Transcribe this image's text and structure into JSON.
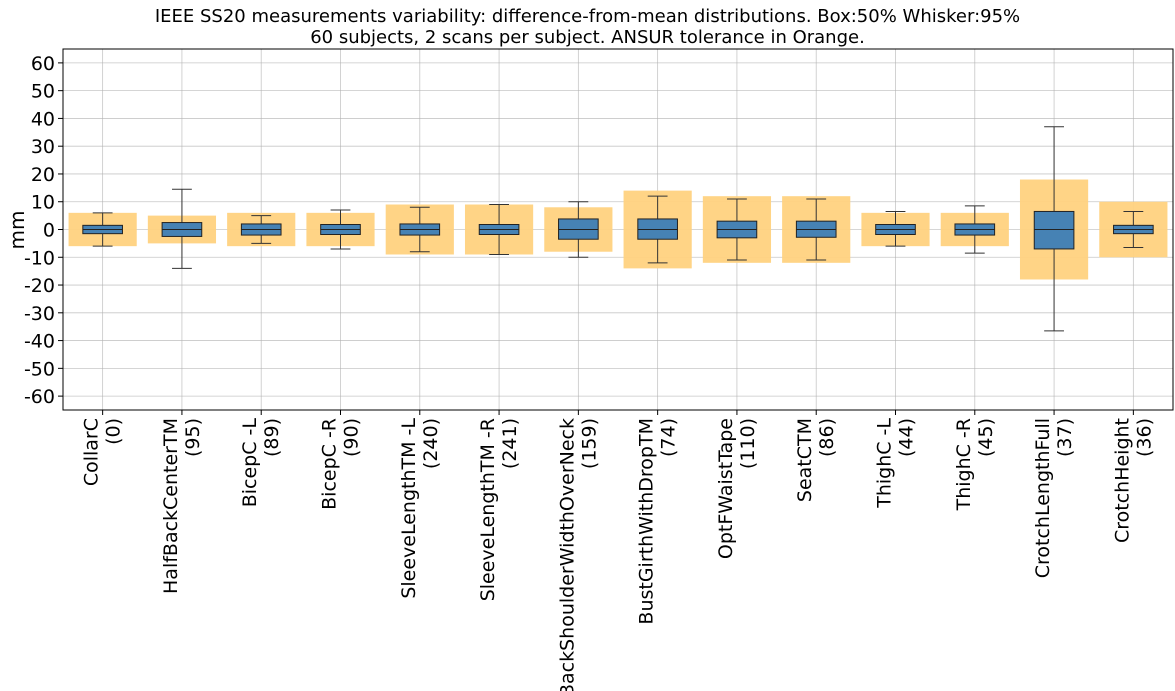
{
  "chart_data": {
    "type": "box",
    "title_lines": [
      "IEEE SS20 measurements variability: difference-from-mean distributions. Box:50% Whisker:95%",
      "60 subjects, 2 scans per subject. ANSUR tolerance in Orange."
    ],
    "ylabel": "mm",
    "xlabel": "",
    "ylim": [
      -65,
      65
    ],
    "yticks": [
      -60,
      -50,
      -40,
      -30,
      -20,
      -10,
      0,
      10,
      20,
      30,
      40,
      50,
      60
    ],
    "ytick_labels": [
      "-60",
      "-50",
      "-40",
      "-30",
      "-20",
      "-10",
      "0",
      "10",
      "20",
      "30",
      "40",
      "50",
      "60"
    ],
    "grid": true,
    "colors": {
      "box": "#4682b4",
      "tolerance": "#ffd27f",
      "grid": "#b0b0b0"
    },
    "categories": [
      {
        "name": "CollarC",
        "id": "(0)",
        "tolerance": 6,
        "q1": -1.5,
        "median": 0,
        "q3": 1.5,
        "whisker_low": -6,
        "whisker_high": 6
      },
      {
        "name": "HalfBackCenterTM",
        "id": "(95)",
        "tolerance": 5,
        "q1": -2.5,
        "median": 0,
        "q3": 2.5,
        "whisker_low": -14,
        "whisker_high": 14.5
      },
      {
        "name": "BicepC -L",
        "id": "(89)",
        "tolerance": 6,
        "q1": -2,
        "median": 0,
        "q3": 2,
        "whisker_low": -5,
        "whisker_high": 5
      },
      {
        "name": "BicepC -R",
        "id": "(90)",
        "tolerance": 6,
        "q1": -1.8,
        "median": 0,
        "q3": 1.8,
        "whisker_low": -7,
        "whisker_high": 7
      },
      {
        "name": "SleeveLengthTM -L",
        "id": "(240)",
        "tolerance": 9,
        "q1": -2,
        "median": 0,
        "q3": 2,
        "whisker_low": -8,
        "whisker_high": 8
      },
      {
        "name": "SleeveLengthTM -R",
        "id": "(241)",
        "tolerance": 9,
        "q1": -1.8,
        "median": 0,
        "q3": 1.8,
        "whisker_low": -9,
        "whisker_high": 9
      },
      {
        "name": "BackShoulderWidthOverNeck",
        "id": "(159)",
        "tolerance": 8,
        "q1": -3.5,
        "median": 0,
        "q3": 3.8,
        "whisker_low": -10,
        "whisker_high": 10
      },
      {
        "name": "BustGirthWithDropTM",
        "id": "(74)",
        "tolerance": 14,
        "q1": -3.5,
        "median": 0,
        "q3": 3.8,
        "whisker_low": -12,
        "whisker_high": 12
      },
      {
        "name": "OptFWaistTape",
        "id": "(110)",
        "tolerance": 12,
        "q1": -3,
        "median": 0,
        "q3": 3,
        "whisker_low": -11,
        "whisker_high": 11
      },
      {
        "name": "SeatCTM",
        "id": "(86)",
        "tolerance": 12,
        "q1": -2.8,
        "median": 0,
        "q3": 3,
        "whisker_low": -11,
        "whisker_high": 11
      },
      {
        "name": "ThighC -L",
        "id": "(44)",
        "tolerance": 6,
        "q1": -1.8,
        "median": 0,
        "q3": 1.8,
        "whisker_low": -6,
        "whisker_high": 6.5
      },
      {
        "name": "ThighC -R",
        "id": "(45)",
        "tolerance": 6,
        "q1": -2,
        "median": 0,
        "q3": 2,
        "whisker_low": -8.5,
        "whisker_high": 8.5
      },
      {
        "name": "CrotchLengthFull",
        "id": "(37)",
        "tolerance": 18,
        "q1": -7,
        "median": 0,
        "q3": 6.5,
        "whisker_low": -36.5,
        "whisker_high": 37
      },
      {
        "name": "CrotchHeight",
        "id": "(36)",
        "tolerance": 10,
        "q1": -1.5,
        "median": 0,
        "q3": 1.5,
        "whisker_low": -6.5,
        "whisker_high": 6.5
      }
    ]
  }
}
